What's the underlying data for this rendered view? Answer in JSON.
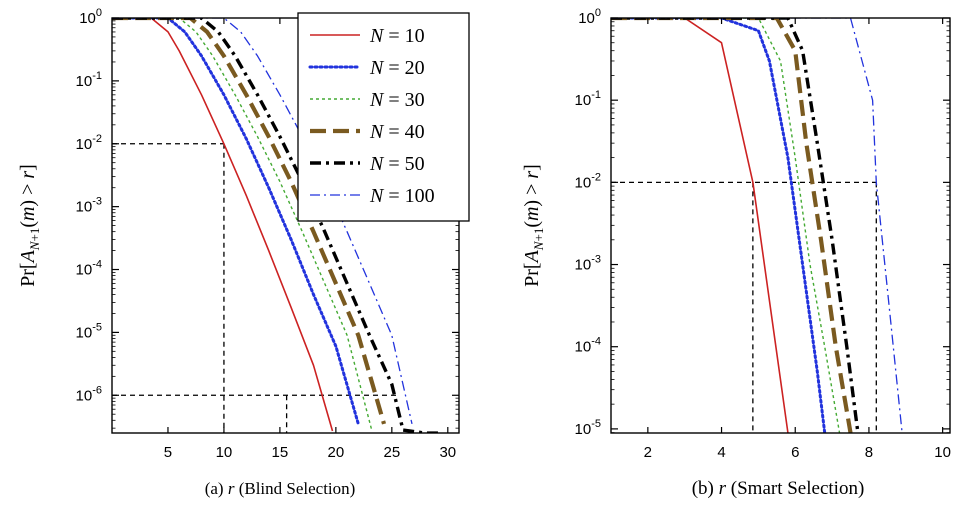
{
  "chart_data": [
    {
      "id": "a",
      "type": "line",
      "caption_prefix": "(a) ",
      "caption_var": "r",
      "caption_text": " (Blind Selection)",
      "ylabel": "Pr[A_{N+1}(m) > r]",
      "xlim": [
        0,
        31
      ],
      "ylog": true,
      "ylim_exp": [
        -6.6,
        0.0
      ],
      "xticks": [
        5,
        10,
        15,
        20,
        25,
        30
      ],
      "yticks_exp": [
        0,
        -1,
        -2,
        -3,
        -4,
        -5,
        -6
      ],
      "grid": false,
      "legend_position": "top-right",
      "series": [
        {
          "name": "N = 10",
          "color": "#cc2222",
          "x": [
            0,
            3.5,
            5,
            6,
            8,
            10,
            12,
            14,
            16,
            18,
            19.7
          ],
          "y": [
            1,
            1,
            0.6,
            0.3,
            0.06,
            0.01,
            0.0015,
            0.0002,
            2.5e-05,
            3e-06,
            2.7e-07
          ]
        },
        {
          "name": "N = 20",
          "color": "#2233dd",
          "x": [
            0,
            5,
            6.5,
            8,
            10,
            12,
            14,
            16,
            18,
            20,
            22
          ],
          "y": [
            1,
            1,
            0.6,
            0.25,
            0.06,
            0.012,
            0.002,
            0.0003,
            4e-05,
            6e-06,
            3.5e-07
          ]
        },
        {
          "name": "N = 30",
          "color": "#44aa33",
          "x": [
            0,
            6,
            7.5,
            9,
            11,
            13,
            15,
            17,
            19,
            21,
            23.2
          ],
          "y": [
            1,
            1,
            0.6,
            0.25,
            0.06,
            0.013,
            0.0025,
            0.0004,
            6e-05,
            9e-06,
            2.8e-07
          ]
        },
        {
          "name": "N = 40",
          "color": "#7a5a20",
          "x": [
            0,
            7,
            8.5,
            10,
            12,
            14,
            16,
            18,
            20,
            22,
            24.3
          ],
          "y": [
            1,
            1,
            0.6,
            0.25,
            0.06,
            0.013,
            0.0025,
            0.0004,
            6e-05,
            9e-06,
            3.5e-07
          ]
        },
        {
          "name": "N = 50",
          "color": "#000000",
          "x": [
            0,
            8,
            9.5,
            11,
            13,
            15,
            17,
            19,
            21,
            23,
            25,
            26,
            28,
            29.5
          ],
          "y": [
            1,
            1,
            0.6,
            0.25,
            0.06,
            0.013,
            0.0025,
            0.0004,
            6e-05,
            9e-06,
            1.5e-06,
            2.8e-07,
            2.5e-07,
            2.5e-07
          ]
        },
        {
          "name": "N = 100",
          "color": "#2233dd",
          "x": [
            0,
            10,
            11.5,
            13,
            15,
            17,
            19,
            21,
            23,
            25,
            26.8
          ],
          "y": [
            1,
            1,
            0.6,
            0.25,
            0.06,
            0.013,
            0.0025,
            0.0004,
            6e-05,
            9e-06,
            3.5e-07
          ]
        }
      ],
      "guides": [
        {
          "kind": "h",
          "y": 0.01,
          "x_to": 10
        },
        {
          "kind": "h",
          "y": 1e-06,
          "x_to": 25.5
        },
        {
          "kind": "v",
          "x": 10,
          "y_from": 0.01
        },
        {
          "kind": "v",
          "x": 15.6,
          "y_from": 1e-06
        }
      ]
    },
    {
      "id": "b",
      "type": "line",
      "caption_prefix": "(b) ",
      "caption_var": "r",
      "caption_text": " (Smart Selection)",
      "ylabel": "Pr[A_{N+1}(m) > r]",
      "xlim": [
        1,
        10.2
      ],
      "ylog": true,
      "ylim_exp": [
        -5.05,
        0.0
      ],
      "xticks": [
        2,
        4,
        6,
        8,
        10
      ],
      "yticks_exp": [
        0,
        -1,
        -2,
        -3,
        -4,
        -5
      ],
      "grid": false,
      "legend_position": "none",
      "series": [
        {
          "name": "N = 10",
          "color": "#cc2222",
          "x": [
            1,
            3,
            4,
            4.85,
            5.8
          ],
          "y": [
            1,
            1,
            0.5,
            0.01,
            9e-06
          ]
        },
        {
          "name": "N = 20",
          "color": "#2233dd",
          "x": [
            1,
            4,
            5,
            5.3,
            5.8,
            6.2,
            6.6,
            6.8
          ],
          "y": [
            1,
            1,
            0.7,
            0.3,
            0.02,
            0.001,
            5e-05,
            9e-06
          ]
        },
        {
          "name": "N = 30",
          "color": "#44aa33",
          "x": [
            1,
            5,
            5.6,
            6,
            6.4,
            6.8,
            7.2
          ],
          "y": [
            1,
            1,
            0.3,
            0.02,
            0.001,
            0.0001,
            9e-06
          ]
        },
        {
          "name": "N = 40",
          "color": "#7a5a20",
          "x": [
            1,
            5.5,
            6,
            6.3,
            6.7,
            7.1,
            7.5
          ],
          "y": [
            1,
            1,
            0.4,
            0.03,
            0.002,
            0.0001,
            9e-06
          ]
        },
        {
          "name": "N = 50",
          "color": "#000000",
          "x": [
            1,
            5.8,
            6.2,
            6.6,
            7.0,
            7.4,
            7.7
          ],
          "y": [
            1,
            1,
            0.4,
            0.03,
            0.002,
            0.0001,
            9e-06
          ]
        },
        {
          "name": "N = 100",
          "color": "#2233dd",
          "x": [
            1,
            7.5,
            8.1,
            8.2,
            8.5,
            8.9
          ],
          "y": [
            1,
            1,
            0.1,
            0.01,
            0.0005,
            9e-06
          ]
        }
      ],
      "guides": [
        {
          "kind": "h",
          "y": 0.01,
          "x_to": 8.2
        },
        {
          "kind": "v",
          "x": 4.85,
          "y_from": 0.01
        },
        {
          "kind": "v",
          "x": 8.2,
          "y_from": 0.01
        }
      ]
    }
  ],
  "legend": [
    "N = 10",
    "N = 20",
    "N = 30",
    "N = 40",
    "N = 50",
    "N = 100"
  ]
}
